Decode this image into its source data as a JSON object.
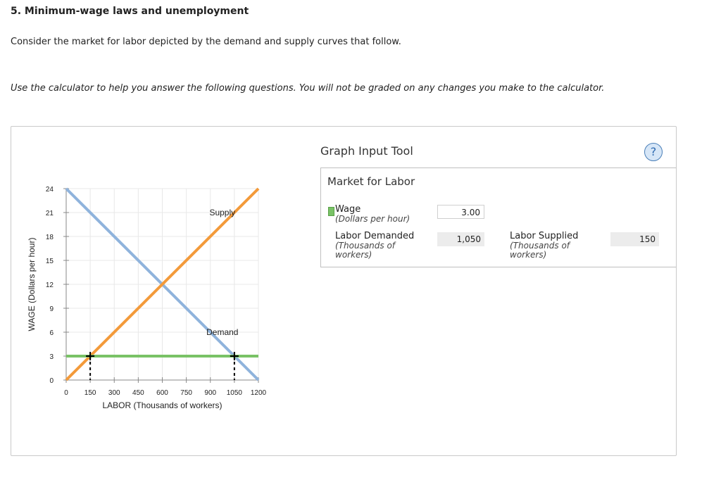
{
  "question": {
    "title": "5. Minimum-wage laws and unemployment",
    "intro": "Consider the market for labor depicted by the demand and supply curves that follow.",
    "instructions": "Use the calculator to help you answer the following questions. You will not be graded on any changes you make to the calculator."
  },
  "tool": {
    "title": "Graph Input Tool",
    "help_icon": "?",
    "market_title": "Market for Labor",
    "wage_label": "Wage",
    "wage_sub": "(Dollars per hour)",
    "wage_value": "3.00",
    "demanded_label": "Labor Demanded",
    "demanded_sub": "(Thousands of workers)",
    "demanded_value": "1,050",
    "supplied_label": "Labor Supplied",
    "supplied_sub": "(Thousands of workers)",
    "supplied_value": "150",
    "wage_color": "#79c266"
  },
  "chart_data": {
    "type": "line",
    "xlabel": "LABOR (Thousands of workers)",
    "ylabel": "WAGE (Dollars per hour)",
    "xlim": [
      0,
      1200
    ],
    "ylim": [
      0,
      24
    ],
    "xticks": [
      0,
      150,
      300,
      450,
      600,
      750,
      900,
      1050,
      1200
    ],
    "yticks": [
      0,
      3,
      6,
      9,
      12,
      15,
      18,
      21,
      24
    ],
    "grid": true,
    "series": [
      {
        "name": "Demand",
        "color": "#8fb3dc",
        "points": [
          [
            0,
            24
          ],
          [
            1200,
            0
          ]
        ]
      },
      {
        "name": "Supply",
        "color": "#f39a3a",
        "points": [
          [
            0,
            0
          ],
          [
            1200,
            24
          ]
        ]
      },
      {
        "name": "Wage",
        "color": "#79c266",
        "points": [
          [
            0,
            3
          ],
          [
            1200,
            3
          ]
        ]
      }
    ],
    "annotations": [
      {
        "text": "Supply",
        "x": 975,
        "y": 21
      },
      {
        "text": "Demand",
        "x": 975,
        "y": 6
      }
    ],
    "markers": [
      {
        "x": 150,
        "y": 3
      },
      {
        "x": 1050,
        "y": 3
      }
    ]
  }
}
